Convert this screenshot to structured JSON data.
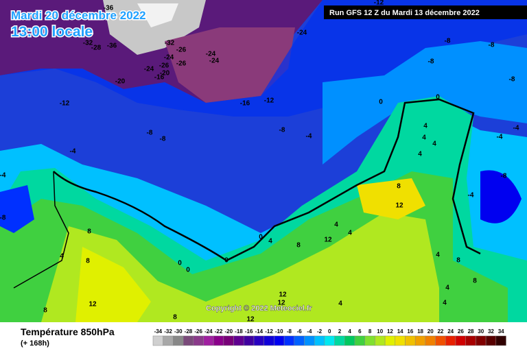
{
  "header": {
    "date": "Mardi 20 décembre 2022",
    "time": "13:00 locale",
    "run": "Run GFS 12 Z du Mardi 13 décembre 2022"
  },
  "copyright": "Copyright © 2022 Meteociel.fr",
  "footer": {
    "title": "Température 850hPa",
    "lead": "(+ 168h)"
  },
  "map_labels": [
    -36,
    -32,
    -28,
    -36,
    -32,
    -26,
    -24,
    -26,
    -26,
    -20,
    -24,
    -16,
    -20,
    -24,
    -24,
    -24,
    -12,
    -8,
    -8,
    -8,
    -8,
    -12,
    -16,
    -12,
    0,
    0,
    -8,
    -4,
    -8,
    -8,
    -4,
    -4,
    -8,
    -4,
    -4,
    -4,
    -8,
    0,
    4,
    8,
    8,
    12,
    4,
    4,
    8,
    8,
    4,
    0,
    0,
    0,
    12,
    12,
    12,
    12,
    8,
    12,
    4,
    4,
    4,
    4,
    8,
    8,
    4,
    4,
    4,
    4,
    8
  ],
  "scale": {
    "ticks": [
      -34,
      -32,
      -30,
      -28,
      -26,
      -24,
      -22,
      -20,
      -18,
      -16,
      -14,
      -12,
      -10,
      -8,
      -6,
      -4,
      -2,
      0,
      2,
      4,
      6,
      8,
      10,
      12,
      14,
      16,
      18,
      20,
      22,
      24,
      26,
      28,
      30,
      32,
      34
    ],
    "colors": [
      "#d0d0d0",
      "#a8a8a8",
      "#888888",
      "#7a4a7a",
      "#8a3a8a",
      "#a020a0",
      "#8a008a",
      "#780078",
      "#600090",
      "#4000a0",
      "#2800c0",
      "#1000d8",
      "#0000f0",
      "#0030ff",
      "#0060ff",
      "#0090ff",
      "#00c0ff",
      "#00e8f0",
      "#00d8a0",
      "#00c860",
      "#40d040",
      "#80e030",
      "#b0e820",
      "#e0f000",
      "#f0e000",
      "#f0c000",
      "#f0a000",
      "#f08000",
      "#f05000",
      "#e82000",
      "#d00000",
      "#a80000",
      "#800000",
      "#580000",
      "#300000"
    ]
  }
}
